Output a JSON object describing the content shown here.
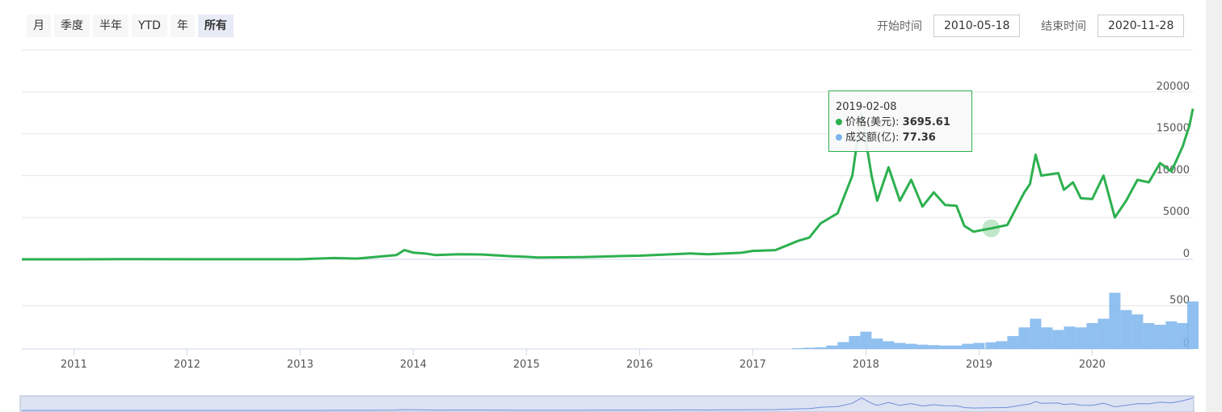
{
  "controls": {
    "range_buttons": [
      "月",
      "季度",
      "半年",
      "YTD",
      "年",
      "所有"
    ],
    "active": "所有",
    "start_label": "开始时间",
    "start_date": "2010-05-18",
    "end_label": "结束时间",
    "end_date": "2020-11-28"
  },
  "chart_data": {
    "type": "line",
    "xlim": [
      2010.54,
      2020.89
    ],
    "xticks": [
      2011,
      2012,
      2013,
      2014,
      2015,
      2016,
      2017,
      2018,
      2019,
      2020
    ],
    "ylim": [
      0,
      25000
    ],
    "yticks": [
      0,
      5000,
      10000,
      15000,
      20000
    ],
    "y2lim": [
      0,
      1000
    ],
    "y2ticks": [
      0,
      500
    ],
    "grid": true,
    "series": [
      {
        "name": "价格(美元)",
        "color": "#2db04f",
        "x": [
          2010.54,
          2011.0,
          2011.45,
          2012.0,
          2013.0,
          2013.3,
          2013.5,
          2013.85,
          2013.92,
          2014.0,
          2014.1,
          2014.2,
          2014.4,
          2014.6,
          2014.9,
          2015.0,
          2015.1,
          2015.5,
          2015.85,
          2016.0,
          2016.45,
          2016.6,
          2016.9,
          2017.0,
          2017.2,
          2017.4,
          2017.5,
          2017.6,
          2017.75,
          2017.88,
          2017.96,
          2018.05,
          2018.1,
          2018.2,
          2018.3,
          2018.4,
          2018.5,
          2018.6,
          2018.7,
          2018.8,
          2018.87,
          2018.95,
          2019.107,
          2019.25,
          2019.4,
          2019.45,
          2019.5,
          2019.55,
          2019.7,
          2019.75,
          2019.83,
          2019.9,
          2020.0,
          2020.1,
          2020.2,
          2020.3,
          2020.4,
          2020.5,
          2020.6,
          2020.7,
          2020.8,
          2020.86,
          2020.89
        ],
        "values": [
          0,
          0.3,
          20,
          5,
          13,
          150,
          90,
          500,
          1100,
          800,
          700,
          500,
          600,
          580,
          350,
          300,
          220,
          260,
          400,
          430,
          700,
          600,
          780,
          1000,
          1100,
          2200,
          2600,
          4300,
          5500,
          10000,
          17500,
          10000,
          7000,
          11000,
          7000,
          9500,
          6300,
          8000,
          6500,
          6400,
          4000,
          3300,
          3695.61,
          4100,
          8000,
          9000,
          12500,
          10000,
          10300,
          8300,
          9200,
          7300,
          7200,
          10000,
          5000,
          7000,
          9500,
          9200,
          11500,
          10500,
          13500,
          16000,
          18000
        ]
      },
      {
        "name": "成交额(亿)",
        "color": "#7cb5ec",
        "axis": "y2",
        "x": [
          2017.4,
          2017.5,
          2017.6,
          2017.7,
          2017.8,
          2017.9,
          2018.0,
          2018.1,
          2018.2,
          2018.3,
          2018.4,
          2018.5,
          2018.6,
          2018.7,
          2018.8,
          2018.9,
          2019.0,
          2019.107,
          2019.2,
          2019.3,
          2019.4,
          2019.5,
          2019.6,
          2019.7,
          2019.8,
          2019.9,
          2020.0,
          2020.1,
          2020.2,
          2020.3,
          2020.4,
          2020.5,
          2020.6,
          2020.7,
          2020.8,
          2020.89
        ],
        "values": [
          10,
          15,
          20,
          40,
          80,
          150,
          200,
          120,
          90,
          70,
          60,
          50,
          45,
          40,
          40,
          60,
          70,
          77.36,
          90,
          150,
          250,
          350,
          250,
          220,
          260,
          250,
          300,
          350,
          650,
          450,
          400,
          300,
          280,
          320,
          300,
          550
        ]
      }
    ],
    "tooltip": {
      "label": "2019-02-08",
      "values": [
        3695.61,
        77.36
      ]
    }
  }
}
